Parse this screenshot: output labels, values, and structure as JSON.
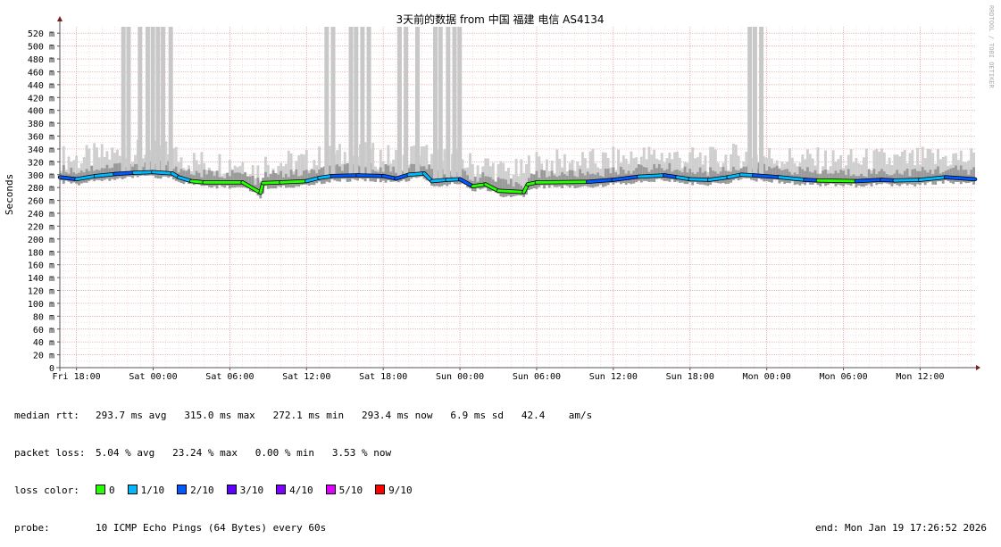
{
  "chart_data": {
    "type": "area",
    "title": "3天前的数据 from 中国 福建 电信 AS4134",
    "ylabel": "Seconds",
    "watermark": "RRDTOOL / TOBI OETIKER",
    "ylim": [
      0,
      530
    ],
    "y_ticks": [
      {
        "v": 0,
        "label": "0"
      },
      {
        "v": 20,
        "label": "20 m"
      },
      {
        "v": 40,
        "label": "40 m"
      },
      {
        "v": 60,
        "label": "60 m"
      },
      {
        "v": 80,
        "label": "80 m"
      },
      {
        "v": 100,
        "label": "100 m"
      },
      {
        "v": 120,
        "label": "120 m"
      },
      {
        "v": 140,
        "label": "140 m"
      },
      {
        "v": 160,
        "label": "160 m"
      },
      {
        "v": 180,
        "label": "180 m"
      },
      {
        "v": 200,
        "label": "200 m"
      },
      {
        "v": 220,
        "label": "220 m"
      },
      {
        "v": 240,
        "label": "240 m"
      },
      {
        "v": 260,
        "label": "260 m"
      },
      {
        "v": 280,
        "label": "280 m"
      },
      {
        "v": 300,
        "label": "300 m"
      },
      {
        "v": 320,
        "label": "320 m"
      },
      {
        "v": 340,
        "label": "340 m"
      },
      {
        "v": 360,
        "label": "360 m"
      },
      {
        "v": 380,
        "label": "380 m"
      },
      {
        "v": 400,
        "label": "400 m"
      },
      {
        "v": 420,
        "label": "420 m"
      },
      {
        "v": 440,
        "label": "440 m"
      },
      {
        "v": 460,
        "label": "460 m"
      },
      {
        "v": 480,
        "label": "480 m"
      },
      {
        "v": 500,
        "label": "500 m"
      },
      {
        "v": 520,
        "label": "520 m"
      }
    ],
    "x_range_hours": [
      -1.3,
      70.3
    ],
    "x_ticks": [
      {
        "h": 0,
        "label": "Fri 18:00"
      },
      {
        "h": 6,
        "label": "Sat 00:00"
      },
      {
        "h": 12,
        "label": "Sat 06:00"
      },
      {
        "h": 18,
        "label": "Sat 12:00"
      },
      {
        "h": 24,
        "label": "Sat 18:00"
      },
      {
        "h": 30,
        "label": "Sun 00:00"
      },
      {
        "h": 36,
        "label": "Sun 06:00"
      },
      {
        "h": 42,
        "label": "Sun 12:00"
      },
      {
        "h": 48,
        "label": "Sun 18:00"
      },
      {
        "h": 54,
        "label": "Mon 00:00"
      },
      {
        "h": 60,
        "label": "Mon 06:00"
      },
      {
        "h": 66,
        "label": "Mon 12:00"
      }
    ],
    "median_ms": [
      [
        -1.3,
        296
      ],
      [
        0,
        293
      ],
      [
        1.5,
        298
      ],
      [
        3,
        301
      ],
      [
        4.5,
        303
      ],
      [
        6,
        304
      ],
      [
        7.5,
        302
      ],
      [
        8,
        296
      ],
      [
        9,
        290
      ],
      [
        10,
        288
      ],
      [
        13,
        288
      ],
      [
        14.4,
        272
      ],
      [
        14.6,
        287
      ],
      [
        16,
        288
      ],
      [
        18,
        290
      ],
      [
        19,
        295
      ],
      [
        20,
        298
      ],
      [
        22,
        299
      ],
      [
        24,
        298
      ],
      [
        25,
        294
      ],
      [
        26,
        300
      ],
      [
        27.2,
        302
      ],
      [
        27.8,
        290
      ],
      [
        29,
        292
      ],
      [
        30,
        293
      ],
      [
        31,
        282
      ],
      [
        32,
        285
      ],
      [
        33,
        275
      ],
      [
        35,
        273
      ],
      [
        35.3,
        285
      ],
      [
        36,
        288
      ],
      [
        40,
        289
      ],
      [
        42,
        292
      ],
      [
        44,
        297
      ],
      [
        46,
        299
      ],
      [
        47,
        296
      ],
      [
        48,
        293
      ],
      [
        49.5,
        292
      ],
      [
        51,
        296
      ],
      [
        52,
        300
      ],
      [
        53,
        299
      ],
      [
        55,
        296
      ],
      [
        57,
        292
      ],
      [
        58,
        291
      ],
      [
        61,
        290
      ],
      [
        63,
        292
      ],
      [
        64,
        291
      ],
      [
        66,
        292
      ],
      [
        68,
        296
      ],
      [
        70.3,
        293
      ]
    ],
    "spikes": [
      {
        "h": 3.5,
        "top_ms": 530
      },
      {
        "h": 3.9,
        "top_ms": 530
      },
      {
        "h": 4.8,
        "top_ms": 530
      },
      {
        "h": 5.4,
        "top_ms": 530
      },
      {
        "h": 5.8,
        "top_ms": 530
      },
      {
        "h": 6.2,
        "top_ms": 530
      },
      {
        "h": 6.6,
        "top_ms": 530
      },
      {
        "h": 7.2,
        "top_ms": 530
      },
      {
        "h": 19.4,
        "top_ms": 530
      },
      {
        "h": 19.9,
        "top_ms": 530
      },
      {
        "h": 21.3,
        "top_ms": 530
      },
      {
        "h": 21.7,
        "top_ms": 530
      },
      {
        "h": 22.2,
        "top_ms": 530
      },
      {
        "h": 22.7,
        "top_ms": 530
      },
      {
        "h": 25.1,
        "top_ms": 530
      },
      {
        "h": 25.6,
        "top_ms": 530
      },
      {
        "h": 26.5,
        "top_ms": 530
      },
      {
        "h": 27.9,
        "top_ms": 530
      },
      {
        "h": 28.3,
        "top_ms": 530
      },
      {
        "h": 28.9,
        "top_ms": 530
      },
      {
        "h": 29.4,
        "top_ms": 530
      },
      {
        "h": 29.8,
        "top_ms": 530
      },
      {
        "h": 52.5,
        "top_ms": 530
      },
      {
        "h": 52.9,
        "top_ms": 530
      },
      {
        "h": 53.4,
        "top_ms": 530
      }
    ],
    "loss_colors": [
      {
        "label": "0",
        "color": "#26ff00"
      },
      {
        "label": "1/10",
        "color": "#00b8ff"
      },
      {
        "label": "2/10",
        "color": "#0059ff"
      },
      {
        "label": "3/10",
        "color": "#5e00ff"
      },
      {
        "label": "4/10",
        "color": "#7e00ff"
      },
      {
        "label": "5/10",
        "color": "#dd00ff"
      },
      {
        "label": "9/10",
        "color": "#ff0000"
      }
    ]
  },
  "legend": {
    "median_rtt": {
      "label": "median rtt:",
      "text": "293.7 ms avg   315.0 ms max   272.1 ms min   293.4 ms now   6.9 ms sd   42.4    am/s"
    },
    "packet_loss": {
      "label": "packet loss:",
      "text": "5.04 % avg   23.24 % max   0.00 % min   3.53 % now"
    },
    "loss_color": {
      "label": "loss color:"
    },
    "probe": {
      "label": "probe:",
      "text": "10 ICMP Echo Pings (64 Bytes) every 60s",
      "end": "end: Mon Jan 19 17:26:52 2026"
    }
  }
}
